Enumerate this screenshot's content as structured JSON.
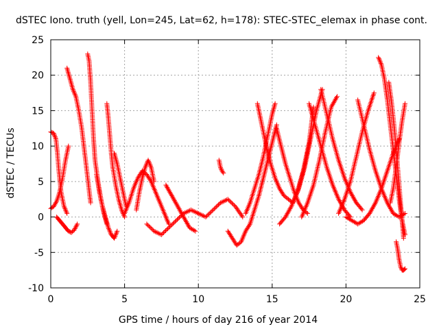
{
  "chart_data": {
    "type": "scatter",
    "title": "dSTEC Iono. truth (yell, Lon=245, Lat=62, h=178): STEC-STEC_elemax in phase cont.",
    "xlabel": "GPS time / hours of day 216 of year 2014",
    "ylabel": "dSTEC  / TECUs",
    "xlim": [
      0,
      25
    ],
    "ylim": [
      -10,
      25
    ],
    "xticks": [
      0,
      5,
      10,
      15,
      20,
      25
    ],
    "yticks": [
      -10,
      -5,
      0,
      5,
      10,
      15,
      20,
      25
    ],
    "xtick_labels": [
      "0",
      "5",
      "10",
      "15",
      "20",
      "25"
    ],
    "ytick_labels": [
      "-10",
      "-5",
      "0",
      "5",
      "10",
      "15",
      "20",
      "25"
    ],
    "grid": true,
    "marker": "+",
    "marker_color": "#ff0000",
    "series": [
      {
        "arcs": [
          {
            "x": [
              0.0,
              0.2,
              0.35,
              0.45,
              0.55,
              0.7,
              0.9,
              1.1
            ],
            "y": [
              12.0,
              11.8,
              11.0,
              9.0,
              6.5,
              3.5,
              1.5,
              0.5
            ]
          },
          {
            "x": [
              0.0,
              0.2,
              0.4,
              0.6,
              0.8,
              1.0,
              1.2
            ],
            "y": [
              1.2,
              1.5,
              2.2,
              3.5,
              5.5,
              8.0,
              10.0
            ]
          },
          {
            "x": [
              0.4,
              0.6,
              0.8,
              1.0,
              1.2,
              1.4,
              1.6,
              1.8
            ],
            "y": [
              0.0,
              -0.5,
              -1.0,
              -1.5,
              -2.0,
              -2.2,
              -1.8,
              -1.0
            ]
          },
          {
            "x": [
              1.1,
              1.3,
              1.5,
              1.7,
              1.9,
              2.1,
              2.3,
              2.5,
              2.7
            ],
            "y": [
              21.0,
              19.5,
              18.0,
              17.0,
              15.0,
              12.5,
              9.0,
              5.5,
              2.0
            ]
          },
          {
            "x": [
              2.5,
              2.6,
              2.7,
              2.8,
              2.9,
              3.0,
              3.2,
              3.4,
              3.6,
              3.8
            ],
            "y": [
              23.0,
              22.0,
              19.0,
              15.0,
              11.0,
              8.0,
              5.0,
              2.5,
              0.5,
              -1.0
            ]
          },
          {
            "x": [
              3.1,
              3.3,
              3.5,
              3.7,
              3.9,
              4.1,
              4.3,
              4.5
            ],
            "y": [
              6.0,
              3.5,
              1.5,
              0.0,
              -1.5,
              -2.5,
              -3.0,
              -2.0
            ]
          },
          {
            "x": [
              3.8,
              3.9,
              4.0,
              4.1,
              4.2,
              4.4,
              4.6,
              4.8,
              5.0
            ],
            "y": [
              16.0,
              14.0,
              11.5,
              9.0,
              7.0,
              4.5,
              2.5,
              1.0,
              0.0
            ]
          },
          {
            "x": [
              4.3,
              4.5,
              4.7,
              4.9,
              5.1
            ],
            "y": [
              9.0,
              7.5,
              5.5,
              3.5,
              1.5
            ]
          },
          {
            "x": [
              5.0,
              5.3,
              5.6,
              5.9,
              6.2,
              6.5,
              6.8,
              7.1,
              7.4,
              7.7,
              8.0
            ],
            "y": [
              0.5,
              2.0,
              4.0,
              5.5,
              6.5,
              6.0,
              5.0,
              3.5,
              2.0,
              0.5,
              -1.0
            ]
          },
          {
            "x": [
              5.8,
              6.0,
              6.2,
              6.4,
              6.6,
              6.8,
              7.0
            ],
            "y": [
              1.0,
              3.5,
              5.5,
              7.0,
              8.0,
              7.0,
              5.0
            ]
          },
          {
            "x": [
              6.5,
              7.0,
              7.5,
              8.0,
              8.5,
              9.0,
              9.5,
              10.0
            ],
            "y": [
              -1.0,
              -2.0,
              -2.5,
              -1.5,
              -0.5,
              0.5,
              1.0,
              0.5
            ]
          },
          {
            "x": [
              7.8,
              8.2,
              8.6,
              9.0,
              9.4,
              9.8
            ],
            "y": [
              4.5,
              3.0,
              1.5,
              0.0,
              -1.5,
              -2.0
            ]
          },
          {
            "x": [
              10.0,
              10.5,
              11.0,
              11.5,
              12.0,
              12.5,
              13.0
            ],
            "y": [
              0.5,
              0.0,
              1.0,
              2.0,
              2.5,
              1.5,
              0.0
            ]
          },
          {
            "x": [
              11.4,
              11.5,
              11.6,
              11.7
            ],
            "y": [
              8.0,
              7.0,
              6.5,
              6.2
            ]
          },
          {
            "x": [
              12.0,
              12.3,
              12.6,
              12.9,
              13.2,
              13.5
            ],
            "y": [
              -2.0,
              -3.0,
              -4.0,
              -3.5,
              -2.0,
              -1.0
            ]
          },
          {
            "x": [
              13.2,
              13.5,
              13.8,
              14.1,
              14.4,
              14.7,
              15.0,
              15.2
            ],
            "y": [
              0.5,
              2.0,
              4.0,
              6.0,
              8.5,
              11.5,
              14.5,
              16.0
            ]
          },
          {
            "x": [
              13.5,
              13.8,
              14.1,
              14.4,
              14.7,
              15.0,
              15.3
            ],
            "y": [
              -1.0,
              1.0,
              3.0,
              5.5,
              8.0,
              10.5,
              13.0
            ]
          },
          {
            "x": [
              14.0,
              14.3,
              14.6,
              14.9,
              15.2,
              15.5,
              15.8,
              16.1,
              16.4
            ],
            "y": [
              16.0,
              13.0,
              10.0,
              7.5,
              5.5,
              4.0,
              3.0,
              2.5,
              2.0
            ]
          },
          {
            "x": [
              15.3,
              15.6,
              15.9,
              16.2,
              16.5,
              16.8,
              17.1,
              17.4
            ],
            "y": [
              12.5,
              10.0,
              7.5,
              5.5,
              3.5,
              2.0,
              1.0,
              0.5
            ]
          },
          {
            "x": [
              15.5,
              15.9,
              16.3,
              16.7,
              17.1,
              17.5,
              17.8
            ],
            "y": [
              -1.0,
              0.0,
              1.5,
              3.5,
              6.5,
              10.5,
              15.5
            ]
          },
          {
            "x": [
              16.4,
              16.8,
              17.2,
              17.6,
              18.0,
              18.4
            ],
            "y": [
              2.0,
              4.0,
              7.0,
              11.0,
              15.0,
              18.0
            ]
          },
          {
            "x": [
              17.0,
              17.4,
              17.8,
              18.2,
              18.6,
              19.0,
              19.4
            ],
            "y": [
              0.0,
              2.0,
              4.5,
              8.0,
              12.0,
              15.5,
              17.0
            ]
          },
          {
            "x": [
              17.5,
              17.9,
              18.3,
              18.7,
              19.1,
              19.5,
              19.9,
              20.3
            ],
            "y": [
              16.0,
              13.0,
              10.0,
              7.0,
              4.5,
              2.5,
              1.0,
              0.0
            ]
          },
          {
            "x": [
              18.3,
              18.7,
              19.1,
              19.5,
              19.9,
              20.3,
              20.7,
              21.1
            ],
            "y": [
              18.0,
              14.5,
              11.0,
              8.0,
              5.5,
              3.5,
              2.0,
              1.0
            ]
          },
          {
            "x": [
              19.5,
              19.9,
              20.3,
              20.7,
              21.1,
              21.5,
              21.9
            ],
            "y": [
              0.5,
              2.5,
              5.0,
              8.5,
              12.0,
              15.0,
              17.5
            ]
          },
          {
            "x": [
              20.8,
              21.2,
              21.6,
              22.0,
              22.4,
              22.8,
              23.2,
              23.6,
              24.0
            ],
            "y": [
              16.5,
              13.0,
              9.5,
              6.5,
              4.0,
              2.0,
              0.5,
              0.0,
              0.5
            ]
          },
          {
            "x": [
              20.0,
              20.4,
              20.8,
              21.2,
              21.6,
              22.0,
              22.4,
              22.8,
              23.2,
              23.6
            ],
            "y": [
              0.0,
              -0.5,
              -1.0,
              -0.5,
              0.5,
              2.0,
              4.0,
              6.5,
              9.0,
              11.0
            ]
          },
          {
            "x": [
              22.2,
              22.4,
              22.6,
              22.8,
              23.0,
              23.2,
              23.4,
              23.6,
              23.8,
              24.0
            ],
            "y": [
              22.5,
              21.5,
              19.5,
              16.5,
              13.0,
              9.5,
              6.0,
              2.5,
              -0.5,
              -2.5
            ]
          },
          {
            "x": [
              22.9,
              23.1,
              23.3,
              23.5,
              23.7,
              23.9
            ],
            "y": [
              19.0,
              16.0,
              12.0,
              7.0,
              2.0,
              -3.0
            ]
          },
          {
            "x": [
              23.0,
              23.2,
              23.4,
              23.6,
              23.8,
              24.0
            ],
            "y": [
              2.0,
              4.0,
              7.0,
              10.5,
              13.5,
              16.0
            ]
          },
          {
            "x": [
              23.4,
              23.5,
              23.6,
              23.7,
              23.8,
              23.9,
              24.0
            ],
            "y": [
              -3.5,
              -4.5,
              -6.0,
              -7.0,
              -7.5,
              -7.5,
              -7.3
            ]
          }
        ]
      }
    ]
  }
}
